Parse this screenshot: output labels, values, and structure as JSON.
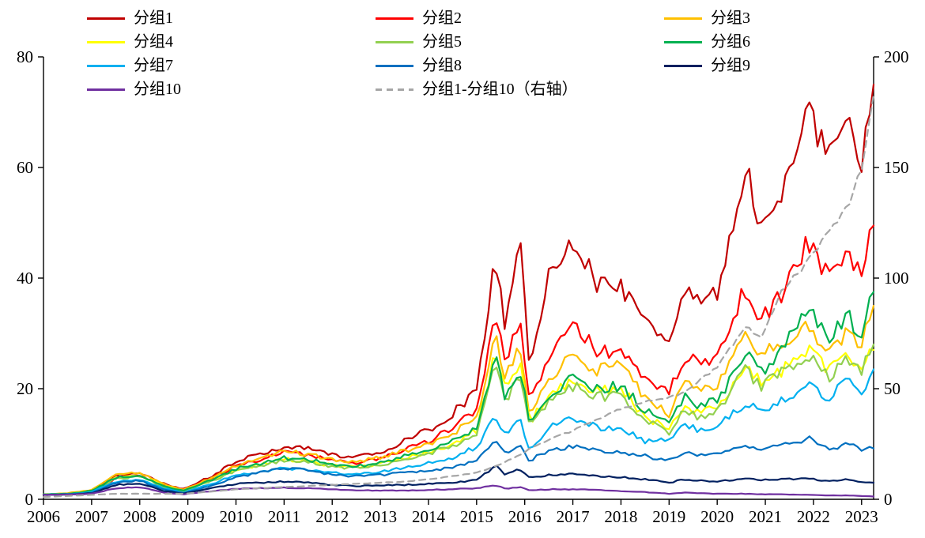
{
  "chart_data": {
    "type": "line",
    "title": "",
    "xlabel": "",
    "ylabel_left": "",
    "ylabel_right": "",
    "grid": false,
    "legend_position": "top",
    "left_axis": {
      "ticks": [
        0,
        20,
        40,
        60,
        80
      ],
      "range": [
        0,
        80
      ]
    },
    "right_axis": {
      "ticks": [
        0,
        50,
        100,
        150,
        200
      ],
      "range": [
        0,
        200
      ]
    },
    "x_axis": {
      "tick_labels": [
        "2006",
        "2007",
        "2008",
        "2009",
        "2010",
        "2011",
        "2012",
        "2013",
        "2014",
        "2015",
        "2016",
        "2017",
        "2018",
        "2019",
        "2020",
        "2021",
        "2022",
        "2023"
      ],
      "range": [
        2006,
        2023.25
      ]
    },
    "x_keypoints": [
      2006.0,
      2006.5,
      2007.0,
      2007.5,
      2008.0,
      2008.5,
      2008.9,
      2009.5,
      2010.0,
      2010.5,
      2011.0,
      2011.5,
      2012.0,
      2012.5,
      2013.0,
      2013.5,
      2014.0,
      2014.5,
      2015.0,
      2015.4,
      2015.6,
      2015.9,
      2016.1,
      2016.5,
      2017.0,
      2017.5,
      2018.0,
      2018.5,
      2019.0,
      2019.3,
      2019.6,
      2020.0,
      2020.6,
      2020.9,
      2021.3,
      2021.9,
      2022.3,
      2022.7,
      2023.0,
      2023.25
    ],
    "series": [
      {
        "name": "分组1",
        "color": "#C00000",
        "axis": "left",
        "noise": 0.05,
        "values": [
          0.8,
          1.0,
          1.6,
          4.2,
          4.8,
          2.8,
          1.8,
          4.2,
          6.8,
          8.2,
          9.6,
          9.2,
          8.0,
          7.6,
          8.6,
          10.5,
          12.5,
          15.5,
          19.5,
          44.0,
          31.0,
          47.5,
          23.0,
          40.0,
          47.0,
          39.0,
          38.5,
          31.5,
          27.5,
          38.0,
          36.0,
          37.0,
          59.5,
          48.0,
          55.0,
          70.5,
          63.0,
          67.0,
          60.0,
          75.0
        ]
      },
      {
        "name": "分组2",
        "color": "#FF0000",
        "axis": "left",
        "noise": 0.05,
        "values": [
          0.8,
          1.0,
          1.5,
          3.8,
          4.3,
          2.5,
          1.6,
          3.8,
          6.0,
          7.2,
          8.4,
          8.0,
          7.0,
          6.6,
          7.4,
          9.0,
          10.5,
          13.0,
          16.0,
          33.0,
          24.0,
          33.5,
          18.0,
          26.0,
          31.0,
          27.0,
          26.5,
          21.5,
          19.0,
          26.0,
          24.5,
          26.0,
          38.5,
          32.0,
          36.5,
          47.0,
          40.0,
          44.0,
          41.0,
          49.5
        ]
      },
      {
        "name": "分组3",
        "color": "#FFC000",
        "axis": "left",
        "noise": 0.05,
        "values": [
          0.9,
          1.1,
          1.7,
          4.3,
          4.9,
          2.7,
          1.7,
          3.9,
          6.2,
          7.4,
          8.6,
          8.2,
          7.2,
          6.8,
          7.5,
          8.8,
          10.0,
          12.0,
          14.5,
          29.5,
          21.5,
          28.5,
          15.5,
          22.0,
          26.0,
          23.5,
          24.0,
          18.5,
          15.5,
          21.0,
          19.5,
          21.0,
          30.0,
          26.5,
          28.5,
          31.0,
          26.0,
          30.5,
          28.0,
          35.0
        ]
      },
      {
        "name": "分组4",
        "color": "#FFFF00",
        "axis": "left",
        "noise": 0.05,
        "values": [
          0.9,
          1.0,
          1.5,
          3.8,
          4.3,
          2.4,
          1.5,
          3.4,
          5.3,
          6.3,
          7.2,
          6.9,
          6.1,
          5.8,
          6.4,
          7.5,
          8.6,
          10.0,
          12.5,
          27.0,
          19.5,
          25.0,
          14.0,
          18.5,
          21.5,
          19.5,
          20.0,
          15.0,
          12.5,
          17.0,
          15.5,
          16.5,
          24.5,
          21.0,
          23.0,
          27.5,
          23.0,
          26.0,
          24.0,
          27.0
        ]
      },
      {
        "name": "分组5",
        "color": "#92D050",
        "axis": "left",
        "noise": 0.05,
        "values": [
          0.9,
          1.0,
          1.4,
          3.7,
          4.2,
          2.3,
          1.4,
          3.3,
          5.2,
          6.1,
          7.0,
          6.7,
          5.9,
          5.6,
          6.2,
          7.2,
          8.2,
          9.6,
          12.0,
          24.5,
          17.5,
          22.5,
          13.0,
          17.5,
          20.5,
          18.5,
          19.0,
          14.5,
          12.0,
          16.5,
          15.0,
          16.0,
          23.5,
          20.5,
          22.5,
          26.5,
          22.0,
          25.5,
          23.0,
          28.0
        ]
      },
      {
        "name": "分组6",
        "color": "#00B050",
        "axis": "left",
        "noise": 0.05,
        "values": [
          0.9,
          1.0,
          1.5,
          3.9,
          4.4,
          2.4,
          1.5,
          3.5,
          5.5,
          6.5,
          7.5,
          7.2,
          6.3,
          6.0,
          6.6,
          7.8,
          9.0,
          10.5,
          13.0,
          25.5,
          18.0,
          24.0,
          13.5,
          19.0,
          22.0,
          20.0,
          20.5,
          16.0,
          13.5,
          18.5,
          17.0,
          18.0,
          26.0,
          23.0,
          26.0,
          35.0,
          29.0,
          33.0,
          30.0,
          37.5
        ]
      },
      {
        "name": "分组7",
        "color": "#00B0F0",
        "axis": "left",
        "noise": 0.05,
        "values": [
          0.8,
          0.9,
          1.3,
          3.2,
          3.6,
          2.0,
          1.2,
          2.8,
          4.4,
          5.0,
          5.6,
          5.4,
          4.8,
          4.6,
          5.0,
          5.8,
          6.6,
          7.6,
          9.5,
          15.0,
          11.5,
          14.5,
          9.0,
          13.0,
          14.5,
          13.0,
          13.0,
          10.5,
          11.0,
          13.5,
          12.5,
          13.0,
          17.5,
          16.0,
          17.5,
          21.0,
          18.0,
          21.5,
          19.5,
          23.5
        ]
      },
      {
        "name": "分组8",
        "color": "#0070C0",
        "axis": "left",
        "noise": 0.045,
        "values": [
          0.8,
          0.9,
          1.2,
          3.0,
          3.4,
          1.8,
          1.1,
          2.5,
          4.0,
          4.8,
          5.6,
          5.4,
          4.4,
          4.2,
          4.4,
          4.8,
          5.2,
          5.8,
          7.0,
          10.5,
          8.5,
          10.0,
          7.0,
          8.8,
          9.5,
          8.8,
          8.5,
          7.8,
          7.0,
          8.5,
          8.0,
          8.0,
          9.5,
          9.0,
          9.5,
          11.0,
          9.0,
          10.0,
          9.0,
          9.2
        ]
      },
      {
        "name": "分组9",
        "color": "#002060",
        "axis": "left",
        "noise": 0.04,
        "values": [
          0.8,
          0.85,
          1.1,
          2.6,
          2.9,
          1.5,
          1.0,
          2.0,
          2.8,
          3.0,
          3.2,
          3.0,
          2.6,
          2.4,
          2.5,
          2.6,
          2.8,
          3.0,
          3.5,
          6.0,
          4.5,
          5.5,
          3.8,
          4.4,
          4.5,
          4.2,
          4.0,
          3.6,
          3.0,
          3.6,
          3.4,
          3.2,
          3.8,
          3.5,
          3.6,
          3.8,
          3.3,
          3.6,
          3.2,
          3.0
        ]
      },
      {
        "name": "分组10",
        "color": "#7030A0",
        "axis": "left",
        "noise": 0.04,
        "values": [
          0.8,
          0.85,
          1.0,
          2.0,
          2.2,
          1.2,
          0.9,
          1.5,
          1.9,
          2.0,
          2.1,
          2.0,
          1.8,
          1.6,
          1.6,
          1.6,
          1.7,
          1.8,
          2.0,
          2.5,
          1.9,
          2.2,
          1.6,
          1.8,
          1.8,
          1.7,
          1.5,
          1.3,
          1.0,
          1.2,
          1.1,
          1.0,
          1.0,
          0.9,
          0.9,
          0.8,
          0.7,
          0.7,
          0.6,
          0.5
        ]
      },
      {
        "name": "分组1-分组10（右轴）",
        "color": "#A6A6A6",
        "axis": "right",
        "dash": true,
        "noise": 0.012,
        "values": [
          1,
          1.5,
          2,
          2.5,
          2.5,
          2.5,
          2.5,
          3.5,
          4.5,
          5,
          5.5,
          6,
          6.5,
          7,
          7.5,
          8,
          9,
          10.5,
          12,
          15,
          17,
          20,
          23,
          27,
          31,
          36,
          41,
          44,
          46,
          48,
          53,
          60,
          78,
          72,
          93,
          108,
          120,
          132,
          150,
          183
        ]
      }
    ]
  }
}
